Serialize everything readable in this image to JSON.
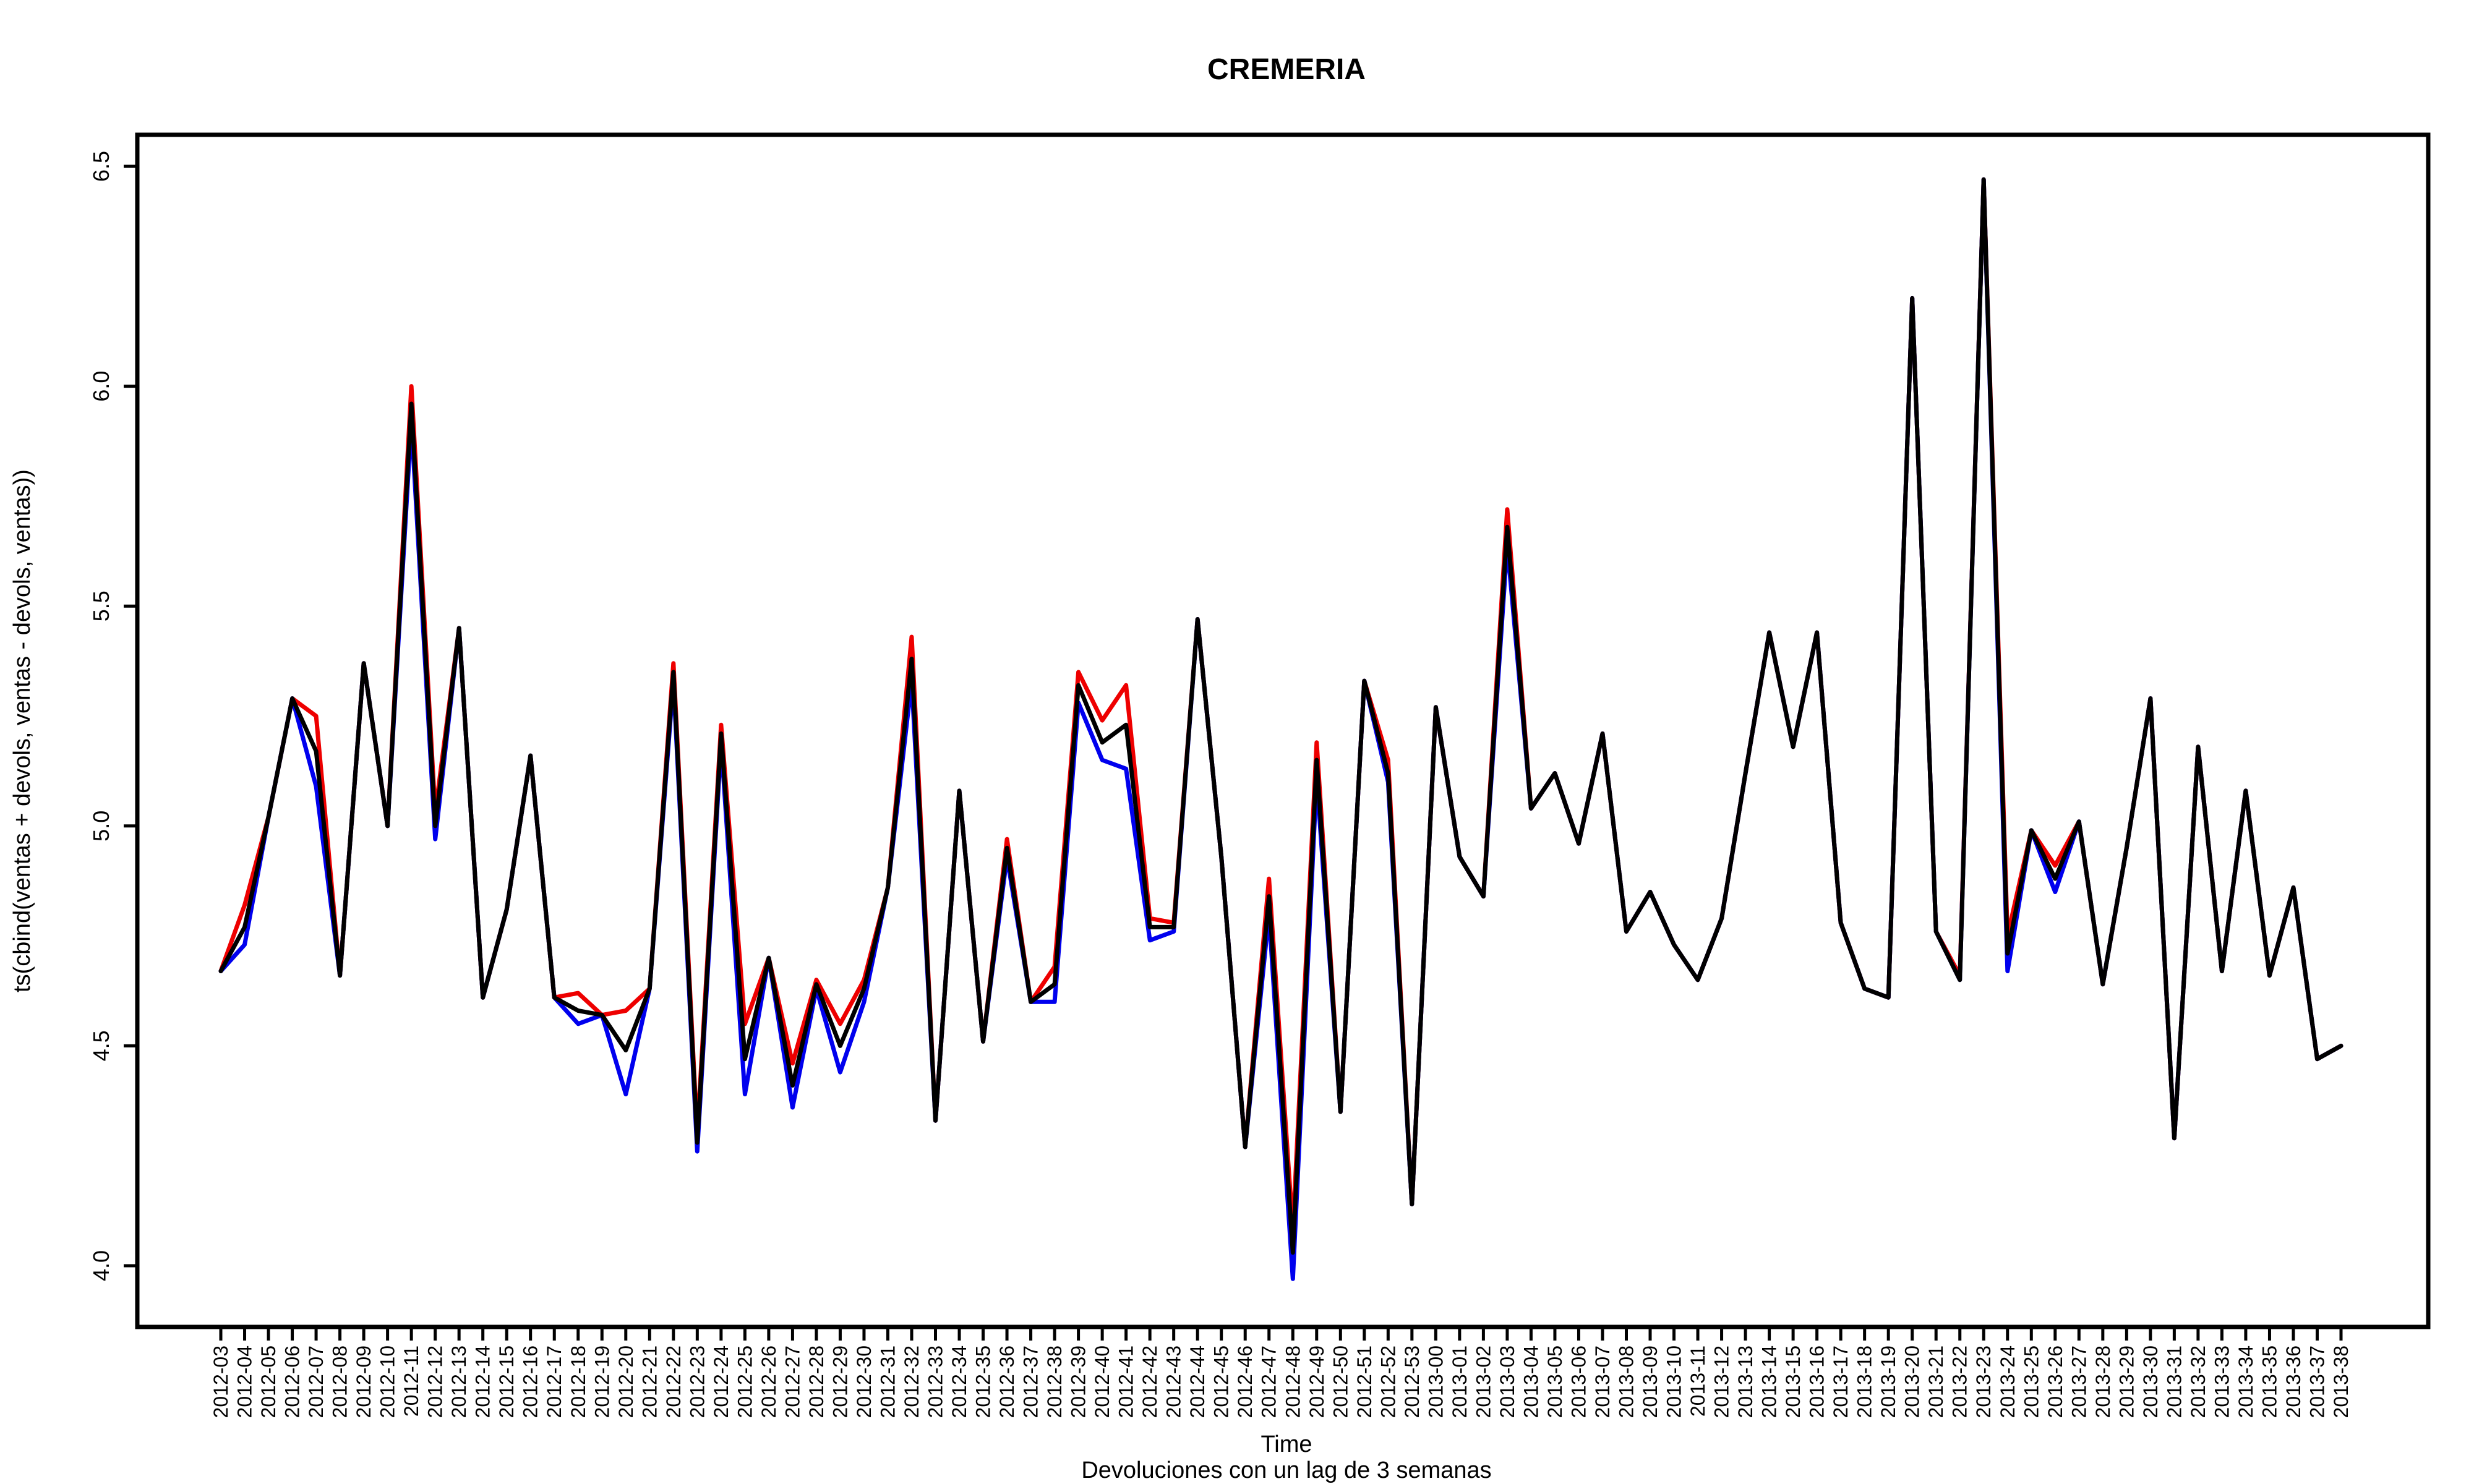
{
  "chart_data": {
    "type": "line",
    "title": "CREMERIA",
    "xlabel": "Time",
    "ylabel": "ts(cbind(ventas + devols, ventas - devols, ventas))",
    "subtitle": "Devoluciones con un lag de 3 semanas",
    "ylim": [
      3.87,
      6.58
    ],
    "yticks": [
      "4.0",
      "4.5",
      "5.0",
      "5.5",
      "6.0",
      "6.5"
    ],
    "ytick_values": [
      4.0,
      4.5,
      5.0,
      5.5,
      6.0,
      6.5
    ],
    "grid": false,
    "categories": [
      "2012-03",
      "2012-04",
      "2012-05",
      "2012-06",
      "2012-07",
      "2012-08",
      "2012-09",
      "2012-10",
      "2012-11",
      "2012-12",
      "2012-13",
      "2012-14",
      "2012-15",
      "2012-16",
      "2012-17",
      "2012-18",
      "2012-19",
      "2012-20",
      "2012-21",
      "2012-22",
      "2012-23",
      "2012-24",
      "2012-25",
      "2012-26",
      "2012-27",
      "2012-28",
      "2012-29",
      "2012-30",
      "2012-31",
      "2012-32",
      "2012-33",
      "2012-34",
      "2012-35",
      "2012-36",
      "2012-37",
      "2012-38",
      "2012-39",
      "2012-40",
      "2012-41",
      "2012-42",
      "2012-43",
      "2012-44",
      "2012-45",
      "2012-46",
      "2012-47",
      "2012-48",
      "2012-49",
      "2012-50",
      "2012-51",
      "2012-52",
      "2012-53",
      "2013-00",
      "2013-01",
      "2013-02",
      "2013-03",
      "2013-04",
      "2013-05",
      "2013-06",
      "2013-07",
      "2013-08",
      "2013-09",
      "2013-10",
      "2013-11",
      "2013-12",
      "2013-13",
      "2013-14",
      "2013-15",
      "2013-16",
      "2013-17",
      "2013-18",
      "2013-19",
      "2013-20",
      "2013-21",
      "2013-22",
      "2013-23",
      "2013-24",
      "2013-25",
      "2013-26",
      "2013-27",
      "2013-28",
      "2013-29",
      "2013-30",
      "2013-31",
      "2013-32",
      "2013-33",
      "2013-34",
      "2013-35",
      "2013-36",
      "2013-37",
      "2013-38"
    ],
    "series": [
      {
        "color": "#ee0000",
        "values": [
          4.67,
          4.82,
          5.02,
          5.29,
          5.25,
          4.66,
          5.37,
          5.0,
          6.0,
          5.03,
          5.45,
          4.61,
          4.81,
          5.16,
          4.61,
          4.62,
          4.57,
          4.58,
          4.63,
          5.37,
          4.3,
          5.23,
          4.55,
          4.7,
          4.46,
          4.65,
          4.55,
          4.65,
          4.86,
          5.43,
          4.33,
          5.08,
          4.51,
          4.97,
          4.6,
          4.68,
          5.35,
          5.24,
          5.32,
          4.79,
          4.78,
          5.47,
          4.93,
          4.27,
          4.88,
          4.08,
          5.19,
          4.35,
          5.33,
          5.15,
          4.14,
          5.27,
          4.93,
          4.84,
          5.72,
          5.04,
          5.12,
          4.96,
          5.21,
          4.76,
          4.85,
          4.73,
          4.65,
          4.79,
          5.12,
          5.44,
          5.18,
          5.44,
          4.78,
          4.63,
          4.61,
          6.2,
          4.76,
          4.66,
          6.47,
          4.75,
          4.99,
          4.91,
          5.01,
          4.64,
          4.95,
          5.29,
          4.29,
          5.18,
          4.67,
          5.08,
          4.66,
          4.86,
          4.47,
          4.5
        ]
      },
      {
        "color": "#0000ee",
        "values": [
          4.67,
          4.73,
          5.02,
          5.29,
          5.09,
          4.66,
          5.37,
          5.0,
          5.92,
          4.97,
          5.45,
          4.61,
          4.81,
          5.16,
          4.61,
          4.55,
          4.57,
          4.39,
          4.63,
          5.33,
          4.26,
          5.19,
          4.39,
          4.7,
          4.36,
          4.63,
          4.44,
          4.6,
          4.86,
          5.33,
          4.33,
          5.08,
          4.51,
          4.93,
          4.6,
          4.6,
          5.28,
          5.15,
          5.13,
          4.74,
          4.76,
          5.47,
          4.93,
          4.27,
          4.8,
          3.97,
          5.11,
          4.35,
          5.33,
          5.1,
          4.14,
          5.27,
          4.93,
          4.84,
          5.64,
          5.04,
          5.12,
          4.96,
          5.21,
          4.76,
          4.85,
          4.73,
          4.65,
          4.79,
          5.12,
          5.44,
          5.18,
          5.44,
          4.78,
          4.63,
          4.61,
          6.2,
          4.76,
          4.65,
          6.47,
          4.67,
          4.99,
          4.85,
          5.01,
          4.64,
          4.95,
          5.29,
          4.29,
          5.18,
          4.67,
          5.08,
          4.66,
          4.86,
          4.47,
          4.5
        ]
      },
      {
        "color": "#000000",
        "values": [
          4.67,
          4.77,
          5.02,
          5.29,
          5.17,
          4.66,
          5.37,
          5.0,
          5.96,
          5.0,
          5.45,
          4.61,
          4.81,
          5.16,
          4.61,
          4.58,
          4.57,
          4.49,
          4.63,
          5.35,
          4.28,
          5.21,
          4.47,
          4.7,
          4.41,
          4.64,
          4.5,
          4.63,
          4.86,
          5.38,
          4.33,
          5.08,
          4.51,
          4.95,
          4.6,
          4.64,
          5.32,
          5.19,
          5.23,
          4.77,
          4.77,
          5.47,
          4.93,
          4.27,
          4.84,
          4.03,
          5.15,
          4.35,
          5.33,
          5.12,
          4.14,
          5.27,
          4.93,
          4.84,
          5.68,
          5.04,
          5.12,
          4.96,
          5.21,
          4.76,
          4.85,
          4.73,
          4.65,
          4.79,
          5.12,
          5.44,
          5.18,
          5.44,
          4.78,
          4.63,
          4.61,
          6.2,
          4.76,
          4.65,
          6.47,
          4.71,
          4.99,
          4.88,
          5.01,
          4.64,
          4.95,
          5.29,
          4.29,
          5.18,
          4.67,
          5.08,
          4.66,
          4.86,
          4.47,
          4.5
        ]
      }
    ]
  }
}
